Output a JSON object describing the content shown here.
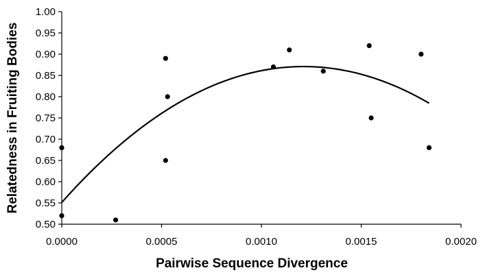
{
  "chart_data": {
    "type": "scatter",
    "title": "",
    "xlabel": "Pairwise Sequence Divergence",
    "ylabel": "Relatedness in Fruiting Bodies",
    "xlim": [
      0,
      0.002
    ],
    "ylim": [
      0.5,
      1.0
    ],
    "x_ticks": [
      "0.0000",
      "0.0005",
      "0.0010",
      "0.0015",
      "0.0020"
    ],
    "y_ticks": [
      "0.50",
      "0.55",
      "0.60",
      "0.65",
      "0.70",
      "0.75",
      "0.80",
      "0.85",
      "0.90",
      "0.95",
      "1.00"
    ],
    "grid": false,
    "legend": "none",
    "series": [
      {
        "kind": "points",
        "color": "#000000",
        "points": [
          {
            "x": 0.0,
            "y": 0.68
          },
          {
            "x": 0.0,
            "y": 0.52
          },
          {
            "x": 0.00027,
            "y": 0.51
          },
          {
            "x": 0.00052,
            "y": 0.89
          },
          {
            "x": 0.00052,
            "y": 0.65
          },
          {
            "x": 0.00053,
            "y": 0.8
          },
          {
            "x": 0.00106,
            "y": 0.87
          },
          {
            "x": 0.00114,
            "y": 0.91
          },
          {
            "x": 0.00131,
            "y": 0.86
          },
          {
            "x": 0.00154,
            "y": 0.92
          },
          {
            "x": 0.00155,
            "y": 0.75
          },
          {
            "x": 0.0018,
            "y": 0.9
          },
          {
            "x": 0.00184,
            "y": 0.68
          }
        ]
      },
      {
        "kind": "quadratic-trend",
        "color": "#000000",
        "coefficients": {
          "a": -218000,
          "b": 528,
          "c": 0.5512
        },
        "x_range": [
          0,
          0.00184
        ]
      }
    ]
  }
}
